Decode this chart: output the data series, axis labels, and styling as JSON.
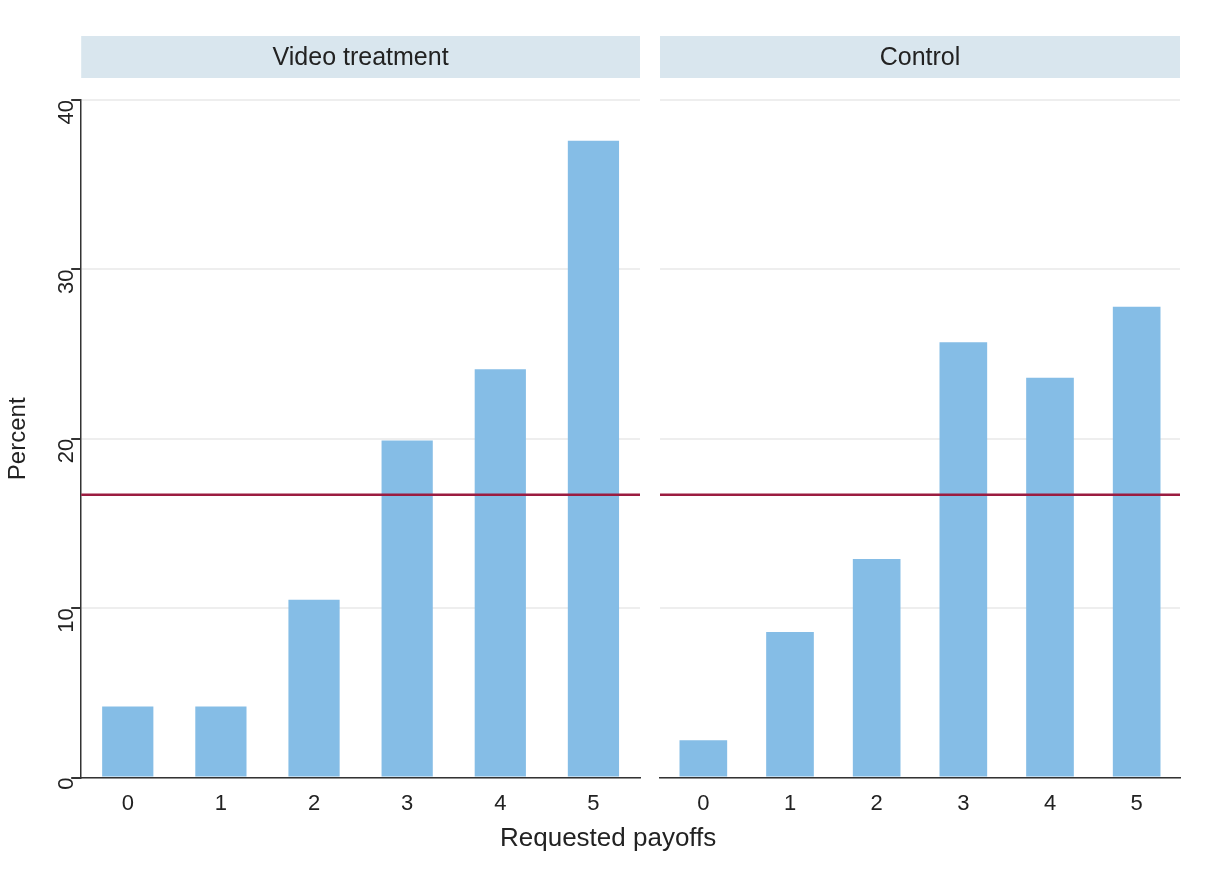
{
  "chart_data": [
    {
      "type": "bar",
      "title": "Video treatment",
      "xlabel": "Requested payoffs",
      "ylabel": "Percent",
      "categories": [
        "0",
        "1",
        "2",
        "3",
        "4",
        "5"
      ],
      "values": [
        4.2,
        4.2,
        10.5,
        19.9,
        24.1,
        37.6
      ],
      "color": "#85bde6",
      "ylim": [
        0,
        40
      ],
      "yticks": [
        0,
        10,
        20,
        30,
        40
      ],
      "grid": "y",
      "ref_lines": [
        {
          "axis": "y",
          "value": 16.7,
          "color": "#9b1c40"
        }
      ]
    },
    {
      "type": "bar",
      "title": "Control",
      "categories": [
        "0",
        "1",
        "2",
        "3",
        "4",
        "5"
      ],
      "values": [
        2.2,
        8.6,
        12.9,
        25.7,
        23.6,
        27.8
      ],
      "color": "#85bde6",
      "ylim": [
        0,
        40
      ],
      "yticks": [
        0,
        10,
        20,
        30,
        40
      ],
      "grid": "y",
      "tick_labels": "x",
      "ref_lines": [
        {
          "axis": "y",
          "value": 16.7,
          "color": "#9b1c40"
        }
      ]
    }
  ]
}
